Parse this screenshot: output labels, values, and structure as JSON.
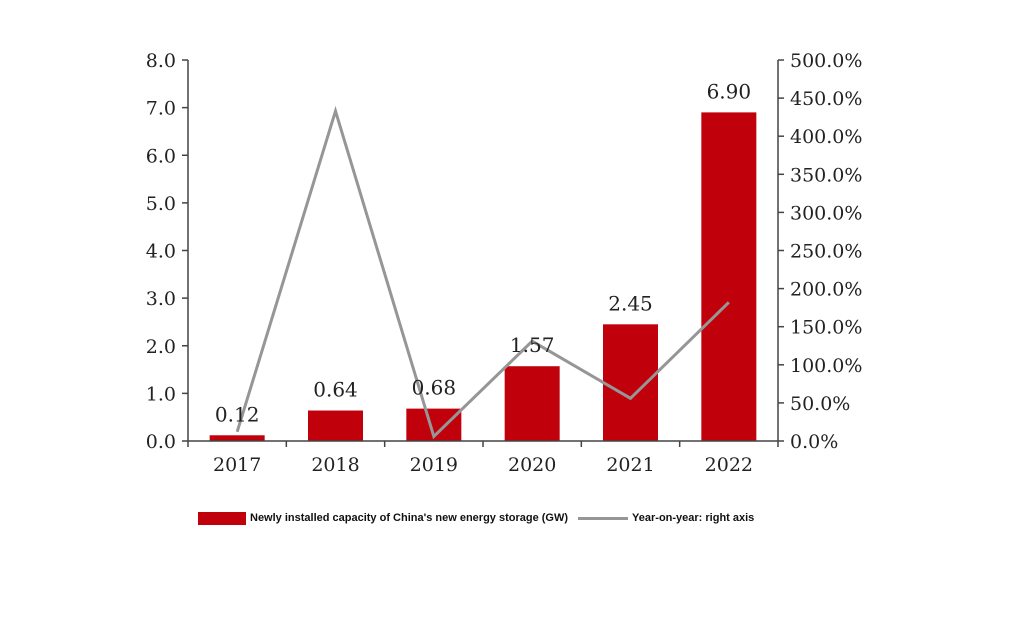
{
  "chart_data": {
    "type": "bar",
    "categories": [
      "2017",
      "2018",
      "2019",
      "2020",
      "2021",
      "2022"
    ],
    "series": [
      {
        "name": "Newly installed capacity of China's new energy storage (GW)",
        "type": "bar",
        "axis": "left",
        "values": [
          0.12,
          0.64,
          0.68,
          1.57,
          2.45,
          6.9
        ],
        "labels": [
          "0.12",
          "0.64",
          "0.68",
          "1.57",
          "2.45",
          "6.90"
        ],
        "color": "#c0000b"
      },
      {
        "name": "Year-on-year: right axis",
        "type": "line",
        "axis": "right",
        "values": [
          12,
          433,
          6,
          131,
          56,
          182
        ],
        "color": "#969696"
      }
    ],
    "y_left": {
      "min": 0,
      "max": 8,
      "step": 1,
      "tick_labels": [
        "0.0",
        "1.0",
        "2.0",
        "3.0",
        "4.0",
        "5.0",
        "6.0",
        "7.0",
        "8.0"
      ]
    },
    "y_right": {
      "min": 0,
      "max": 500,
      "step": 50,
      "tick_labels": [
        "0.0%",
        "50.0%",
        "100.0%",
        "150.0%",
        "200.0%",
        "250.0%",
        "300.0%",
        "350.0%",
        "400.0%",
        "450.0%",
        "500.0%"
      ]
    },
    "grid": false,
    "legend_position": "bottom"
  },
  "legend": {
    "bar_label": "Newly installed capacity of China's new energy storage (GW)",
    "line_label": "Year-on-year: right axis"
  }
}
